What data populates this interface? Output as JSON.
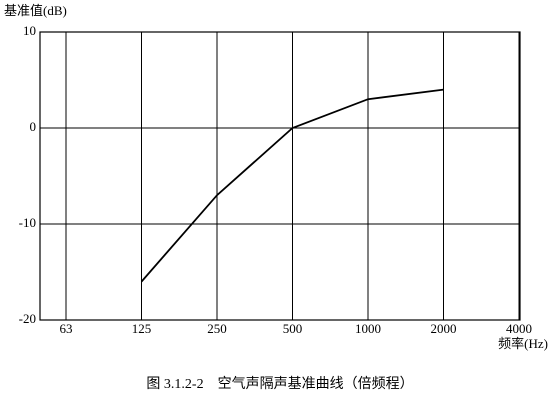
{
  "chart_data": {
    "type": "line",
    "y_label": "基准值(dB)",
    "x_label": "频率(Hz)",
    "caption": "图 3.1.2-2　空气声隔声基准曲线（倍频程）",
    "categories": [
      "63",
      "125",
      "250",
      "500",
      "1000",
      "2000",
      "4000"
    ],
    "values": [
      null,
      -16,
      -7,
      0,
      3,
      4,
      null
    ],
    "color": "#000000",
    "ylim": [
      -20,
      10
    ],
    "yticks": [
      10,
      0,
      -10,
      -20
    ],
    "grid": true
  }
}
